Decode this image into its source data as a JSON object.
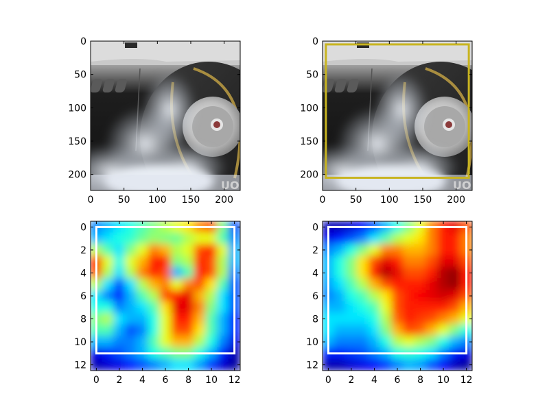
{
  "chart_data": [
    {
      "type": "image",
      "content": "photo of a car rear wheel spinning with tire smoke",
      "xlim": [
        0,
        224
      ],
      "ylim": [
        224,
        0
      ],
      "xticks": [
        "0",
        "50",
        "100",
        "150",
        "200"
      ],
      "yticks": [
        "0",
        "50",
        "100",
        "150",
        "200"
      ],
      "box": null
    },
    {
      "type": "image",
      "content": "same car wheel photo with bounding box",
      "xlim": [
        0,
        224
      ],
      "ylim": [
        224,
        0
      ],
      "xticks": [
        "0",
        "50",
        "100",
        "150",
        "200"
      ],
      "yticks": [
        "0",
        "50",
        "100",
        "150",
        "200"
      ],
      "box": {
        "x0": 5,
        "y0": 5,
        "x1": 219,
        "y1": 205,
        "color": "#c8b420"
      }
    },
    {
      "type": "heatmap",
      "colormap": "jet",
      "xlim": [
        -0.5,
        12.5
      ],
      "ylim": [
        12.5,
        -0.5
      ],
      "xticks": [
        "0",
        "2",
        "4",
        "6",
        "8",
        "10",
        "12"
      ],
      "yticks": [
        "0",
        "2",
        "4",
        "6",
        "8",
        "10",
        "12"
      ],
      "box": {
        "x0": 0,
        "y0": 0,
        "x1": 12,
        "y1": 11,
        "color": "#ffffff"
      },
      "values": [
        [
          0.25,
          0.3,
          0.35,
          0.4,
          0.45,
          0.5,
          0.55,
          0.6,
          0.65,
          0.75,
          0.8,
          0.5,
          0.2
        ],
        [
          0.3,
          0.35,
          0.4,
          0.42,
          0.48,
          0.52,
          0.5,
          0.48,
          0.55,
          0.6,
          0.6,
          0.45,
          0.25
        ],
        [
          0.55,
          0.45,
          0.35,
          0.5,
          0.6,
          0.75,
          0.7,
          0.55,
          0.6,
          0.8,
          0.85,
          0.6,
          0.3
        ],
        [
          0.85,
          0.6,
          0.4,
          0.6,
          0.7,
          0.85,
          0.85,
          0.5,
          0.55,
          0.85,
          0.8,
          0.55,
          0.3
        ],
        [
          0.8,
          0.55,
          0.35,
          0.55,
          0.75,
          0.85,
          0.8,
          0.3,
          0.45,
          0.85,
          0.8,
          0.55,
          0.25
        ],
        [
          0.55,
          0.35,
          0.2,
          0.35,
          0.55,
          0.7,
          0.75,
          0.6,
          0.75,
          0.8,
          0.65,
          0.45,
          0.2
        ],
        [
          0.35,
          0.25,
          0.15,
          0.3,
          0.45,
          0.55,
          0.8,
          0.85,
          0.9,
          0.7,
          0.55,
          0.35,
          0.2
        ],
        [
          0.4,
          0.4,
          0.25,
          0.3,
          0.35,
          0.45,
          0.65,
          0.9,
          0.9,
          0.75,
          0.5,
          0.35,
          0.2
        ],
        [
          0.5,
          0.55,
          0.35,
          0.3,
          0.3,
          0.4,
          0.6,
          0.85,
          0.85,
          0.7,
          0.45,
          0.3,
          0.15
        ],
        [
          0.45,
          0.45,
          0.3,
          0.2,
          0.25,
          0.4,
          0.6,
          0.8,
          0.8,
          0.65,
          0.45,
          0.3,
          0.15
        ],
        [
          0.3,
          0.3,
          0.25,
          0.25,
          0.3,
          0.45,
          0.6,
          0.7,
          0.7,
          0.55,
          0.4,
          0.25,
          0.1
        ],
        [
          0.1,
          0.15,
          0.2,
          0.25,
          0.3,
          0.4,
          0.45,
          0.5,
          0.5,
          0.4,
          0.3,
          0.15,
          0.05
        ],
        [
          0.05,
          0.08,
          0.1,
          0.15,
          0.2,
          0.25,
          0.3,
          0.35,
          0.35,
          0.28,
          0.18,
          0.08,
          0.03
        ]
      ]
    },
    {
      "type": "heatmap",
      "colormap": "jet",
      "xlim": [
        -0.5,
        12.5
      ],
      "ylim": [
        12.5,
        -0.5
      ],
      "xticks": [
        "0",
        "2",
        "4",
        "6",
        "8",
        "10",
        "12"
      ],
      "yticks": [
        "0",
        "2",
        "4",
        "6",
        "8",
        "10",
        "12"
      ],
      "box": {
        "x0": 0,
        "y0": 0,
        "x1": 12,
        "y1": 11,
        "color": "#ffffff"
      },
      "values": [
        [
          0.05,
          0.05,
          0.08,
          0.12,
          0.2,
          0.3,
          0.4,
          0.5,
          0.6,
          0.75,
          0.85,
          0.9,
          0.8
        ],
        [
          0.1,
          0.15,
          0.2,
          0.25,
          0.35,
          0.45,
          0.55,
          0.6,
          0.65,
          0.75,
          0.85,
          0.85,
          0.75
        ],
        [
          0.25,
          0.3,
          0.4,
          0.5,
          0.6,
          0.75,
          0.75,
          0.7,
          0.7,
          0.75,
          0.85,
          0.85,
          0.75
        ],
        [
          0.3,
          0.4,
          0.5,
          0.65,
          0.8,
          0.9,
          0.85,
          0.75,
          0.75,
          0.8,
          0.9,
          0.9,
          0.8
        ],
        [
          0.3,
          0.4,
          0.5,
          0.65,
          0.85,
          0.95,
          0.9,
          0.8,
          0.8,
          0.85,
          0.95,
          0.98,
          0.85
        ],
        [
          0.28,
          0.35,
          0.45,
          0.55,
          0.7,
          0.8,
          0.85,
          0.85,
          0.85,
          0.9,
          0.95,
          0.98,
          0.85
        ],
        [
          0.25,
          0.3,
          0.4,
          0.45,
          0.55,
          0.65,
          0.8,
          0.85,
          0.88,
          0.9,
          0.92,
          0.9,
          0.8
        ],
        [
          0.3,
          0.3,
          0.35,
          0.4,
          0.45,
          0.6,
          0.8,
          0.85,
          0.85,
          0.85,
          0.85,
          0.8,
          0.7
        ],
        [
          0.35,
          0.35,
          0.35,
          0.35,
          0.4,
          0.55,
          0.78,
          0.85,
          0.82,
          0.8,
          0.75,
          0.7,
          0.6
        ],
        [
          0.35,
          0.3,
          0.3,
          0.3,
          0.35,
          0.5,
          0.7,
          0.8,
          0.78,
          0.7,
          0.6,
          0.5,
          0.4
        ],
        [
          0.3,
          0.25,
          0.25,
          0.25,
          0.3,
          0.4,
          0.55,
          0.6,
          0.55,
          0.5,
          0.4,
          0.3,
          0.25
        ],
        [
          0.15,
          0.15,
          0.18,
          0.2,
          0.25,
          0.3,
          0.4,
          0.42,
          0.4,
          0.35,
          0.25,
          0.15,
          0.1
        ],
        [
          0.05,
          0.05,
          0.08,
          0.1,
          0.12,
          0.18,
          0.25,
          0.3,
          0.28,
          0.2,
          0.12,
          0.06,
          0.03
        ]
      ]
    }
  ]
}
